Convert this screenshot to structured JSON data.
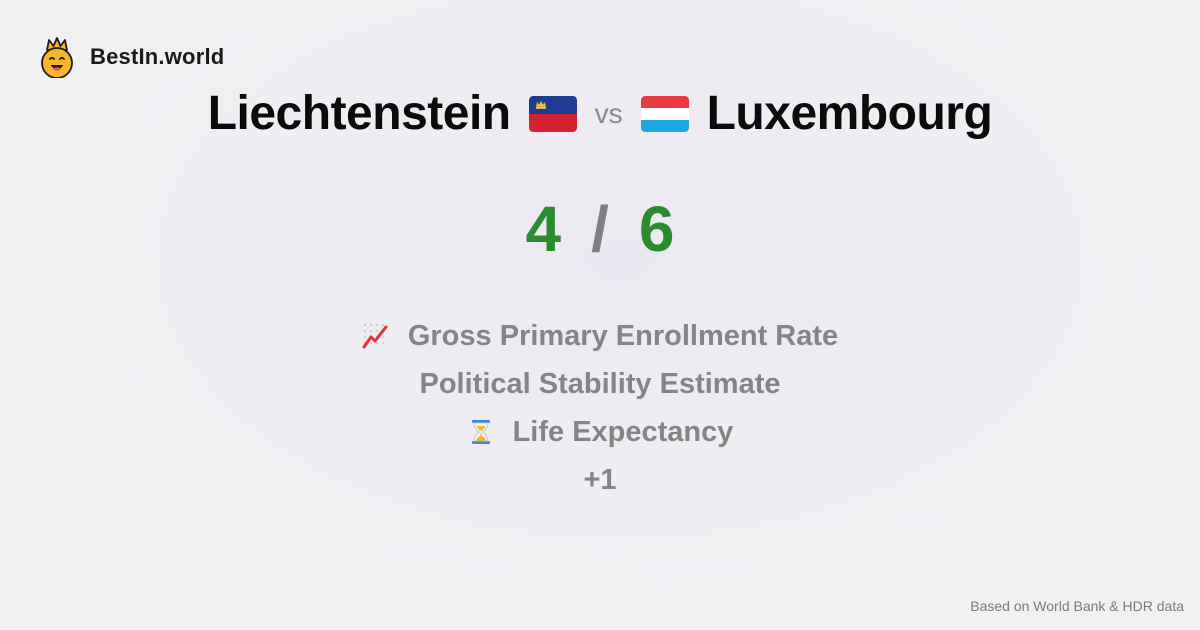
{
  "brand": {
    "name": "BestIn.world",
    "logo_icon": "crowned-smiley-icon"
  },
  "comparison": {
    "left_country": "Liechtenstein",
    "left_flag": "liechtenstein-flag-icon",
    "vs_label": "vs",
    "right_country": "Luxembourg",
    "right_flag": "luxembourg-flag-icon"
  },
  "score": {
    "left": "4",
    "separator": "/",
    "right": "6",
    "color": "#2b8b2f"
  },
  "metrics": [
    {
      "icon": "chart-increasing-icon",
      "label": "Gross Primary Enrollment Rate"
    },
    {
      "icon": "",
      "label": "Political Stability Estimate"
    },
    {
      "icon": "hourglass-icon",
      "label": "Life Expectancy"
    },
    {
      "icon": "",
      "label": "+1"
    }
  ],
  "footer": {
    "source": "Based on World Bank & HDR data"
  }
}
